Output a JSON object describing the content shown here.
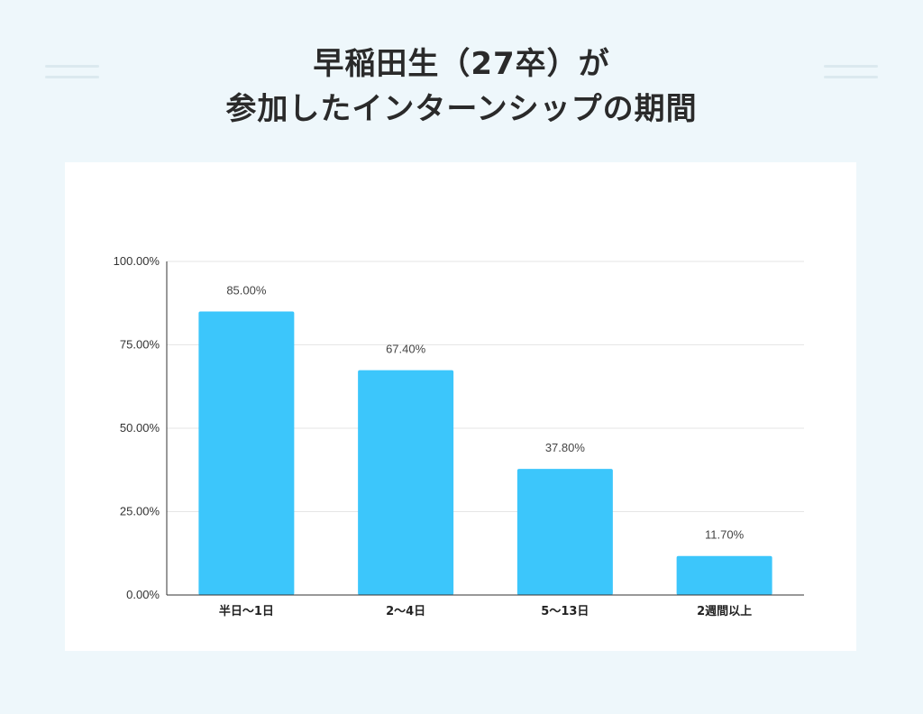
{
  "title": {
    "line1": "早稲田生（27卒）が",
    "line2": "参加したインターンシップの期間"
  },
  "colors": {
    "background": "#eef7fb",
    "bar": "#3cc6fb",
    "title_text": "#2a2a2a"
  },
  "chart_data": {
    "type": "bar",
    "title": "早稲田生（27卒）が参加したインターンシップの期間",
    "xlabel": "",
    "ylabel": "",
    "categories": [
      "半日〜1日",
      "2〜4日",
      "5〜13日",
      "2週間以上"
    ],
    "values": [
      85.0,
      67.4,
      37.8,
      11.7
    ],
    "value_labels": [
      "85.00%",
      "67.40%",
      "37.80%",
      "11.70%"
    ],
    "ylim": [
      0,
      100
    ],
    "y_ticks": [
      0,
      25,
      50,
      75,
      100
    ],
    "y_tick_labels": [
      "0.00%",
      "25.00%",
      "50.00%",
      "75.00%",
      "100.00%"
    ],
    "grid": true,
    "legend": "none"
  }
}
